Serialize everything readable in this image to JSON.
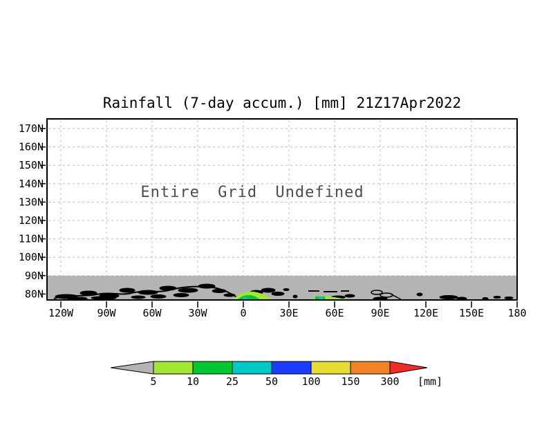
{
  "title": "Rainfall (7-day accum.) [mm] 21Z17Apr2022",
  "plot": {
    "annotation": "Entire Grid Undefined",
    "y_tick_labels": [
      "170N",
      "160N",
      "150N",
      "140N",
      "130N",
      "120N",
      "110N",
      "100N",
      "90N",
      "80N"
    ],
    "x_tick_labels": [
      "120W",
      "90W",
      "60W",
      "30W",
      "0",
      "30E",
      "60E",
      "90E",
      "120E",
      "150E",
      "180"
    ],
    "undefined_band_color": "#b4b4b4",
    "coastline_color": "#000000",
    "grid_color": "#bdbdbd",
    "frame_color": "#000000"
  },
  "colorbar": {
    "levels": [
      "5",
      "10",
      "25",
      "50",
      "100",
      "150",
      "300"
    ],
    "unit_label": "[mm]",
    "segment_colors": [
      "#a0e632",
      "#00c832",
      "#00c8c8",
      "#1e3cff",
      "#e6dc32",
      "#f08228"
    ],
    "under_arrow_color": "#b4b4b4",
    "over_arrow_color": "#f02d28"
  },
  "chart_data": {
    "type": "heatmap",
    "title": "Rainfall (7-day accum.) [mm] 21Z17Apr2022",
    "x_ticks": [
      "120W",
      "90W",
      "60W",
      "30W",
      "0",
      "30E",
      "60E",
      "90E",
      "120E",
      "150E",
      "180"
    ],
    "y_ticks": [
      "170N",
      "160N",
      "150N",
      "140N",
      "130N",
      "120N",
      "110N",
      "100N",
      "90N",
      "80N"
    ],
    "annotation": "Entire Grid Undefined",
    "grid": "dashed, both axes",
    "legend_position": "horizontal colorbar below plot",
    "colorbar_levels_mm": [
      5,
      10,
      25,
      50,
      100,
      150,
      300
    ],
    "colorbar_unit": "mm",
    "colorbar_colors": [
      "#b4b4b4",
      "#a0e632",
      "#00c832",
      "#00c8c8",
      "#1e3cff",
      "#e6dc32",
      "#f08228",
      "#f02d28"
    ],
    "values": "entire grid undefined above 90N (white); gray shaded band from 90N to plot bottom with black Arctic coastlines",
    "shaded_patches": [
      {
        "approx_lon": "0-15E",
        "approx_lat": "near 78N",
        "values_mm": "5-50"
      },
      {
        "approx_lon": "52E-65E",
        "approx_lat": "near 77N",
        "values_mm": "5-50"
      }
    ]
  }
}
